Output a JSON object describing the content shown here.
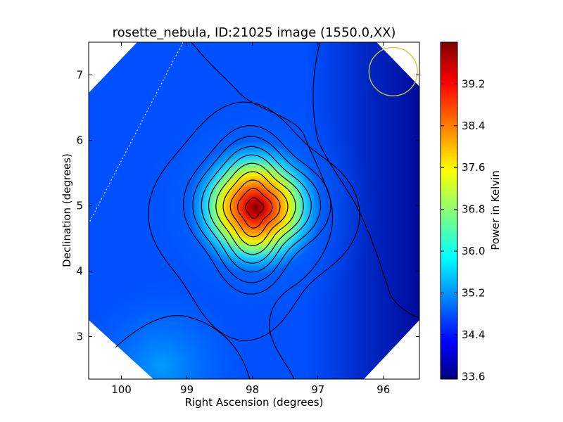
{
  "chart_data": {
    "type": "heatmap",
    "title": "rosette_nebula, ID:21025 image (1550.0,XX)",
    "xlabel": "Right Ascension (degrees)",
    "ylabel": "Declination (degrees)",
    "colorbar_label": "Power in Kelvin",
    "xlim": [
      100.5,
      95.45
    ],
    "ylim": [
      2.35,
      7.5
    ],
    "x_axis_inverted": true,
    "x_ticks": [
      100,
      99,
      98,
      97,
      96
    ],
    "x_tick_labels": [
      "100",
      "99",
      "98",
      "97",
      "96"
    ],
    "y_ticks": [
      3,
      4,
      5,
      6,
      7
    ],
    "y_tick_labels": [
      "3",
      "4",
      "5",
      "6",
      "7"
    ],
    "colorbar_range": [
      33.55,
      40.0
    ],
    "colorbar_ticks": [
      33.6,
      34.4,
      35.2,
      36.0,
      36.8,
      37.6,
      38.4,
      39.2
    ],
    "colorbar_tick_labels": [
      "33.6",
      "34.4",
      "35.2",
      "36.0",
      "36.8",
      "37.6",
      "38.4",
      "39.2"
    ],
    "colormap": "jet",
    "peak": {
      "ra": 97.95,
      "dec": 4.97,
      "value": 40.0
    },
    "background_value": 34.4,
    "contour_line_color": "#000000",
    "beam_circle": {
      "ra": 95.85,
      "dec": 7.05,
      "radius_deg": 0.37,
      "color": "#cccc33"
    },
    "grid": false
  }
}
